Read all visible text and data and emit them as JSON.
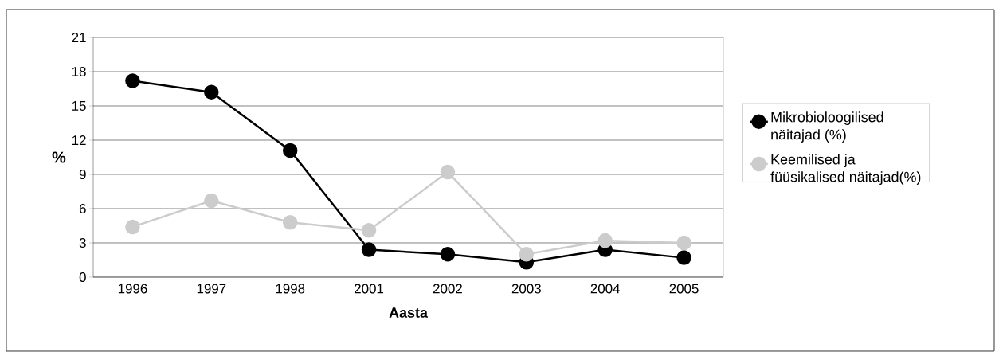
{
  "chart_data": {
    "type": "line",
    "xlabel": "Aasta",
    "ylabel": "%",
    "categories": [
      "1996",
      "1997",
      "1998",
      "2001",
      "2002",
      "2003",
      "2004",
      "2005"
    ],
    "series": [
      {
        "name": "Mikrobioloogilised näitajad (%)",
        "color": "#000000",
        "values": [
          17.2,
          16.2,
          11.1,
          2.4,
          2.0,
          1.3,
          2.4,
          1.7
        ]
      },
      {
        "name": "Keemilised ja füüsikalised näitajad(%)",
        "color": "#cccccc",
        "values": [
          4.4,
          6.7,
          4.8,
          4.1,
          9.2,
          2.0,
          3.2,
          3.0
        ]
      }
    ],
    "ylim": [
      0,
      21
    ],
    "yticks": [
      0,
      3,
      6,
      9,
      12,
      15,
      18,
      21
    ],
    "grid": "y",
    "legend": "right",
    "marker": "circle",
    "line_style": "solid"
  }
}
